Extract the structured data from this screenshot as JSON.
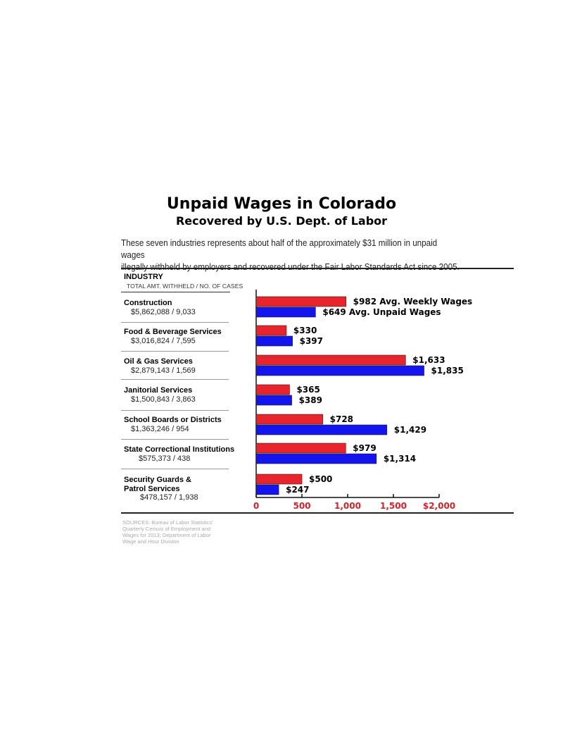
{
  "title": "Unpaid Wages in Colorado",
  "subtitle": "Recovered by U.S. Dept. of Labor",
  "intro_line1": "These seven industries represents about half of the approximately $31 million in unpaid wages",
  "intro_line2": "illegally withheld by employers and recovered under the Fair Labor Standards Act since 2005.",
  "header": {
    "industry": "INDUSTRY",
    "columns": "TOTAL AMT. WITHHELD / NO. OF CASES"
  },
  "rows": [
    {
      "name": "Construction",
      "stat": "$5,862,088 / 9,033"
    },
    {
      "name": "Food & Beverage Services",
      "stat": "$3,016,824 / 7,595"
    },
    {
      "name": "Oil & Gas Services",
      "stat": "$2,879,143 / 1,569"
    },
    {
      "name": "Janitorial Services",
      "stat": "$1,500,843 / 3,863"
    },
    {
      "name": "School Boards or Districts",
      "stat": "$1,363,246 / 954"
    },
    {
      "name": "State Correctional Institutions",
      "stat": "$575,373 / 438"
    },
    {
      "name_line1": "Security Guards &",
      "name_line2": "Patrol Services",
      "stat": "$478,157 / 1,938"
    }
  ],
  "source_lines": [
    "SOURCES: Bureau of Labor Statistics'",
    "Quarterly Census of Employment and",
    "Wages for 2013; Department of Labor",
    "Wage and Hour Division"
  ],
  "colors": {
    "weekly": "#e8242c",
    "unpaid": "#1414ee",
    "axis_labels": "#d8202a"
  },
  "chart_data": {
    "type": "bar",
    "orientation": "horizontal",
    "categories": [
      "Construction",
      "Food & Beverage Services",
      "Oil & Gas Services",
      "Janitorial Services",
      "School Boards or Districts",
      "State Correctional Institutions",
      "Security Guards & Patrol Services"
    ],
    "series": [
      {
        "name": "Avg. Weekly Wages",
        "values": [
          982,
          330,
          1633,
          365,
          728,
          979,
          500
        ]
      },
      {
        "name": "Avg. Unpaid Wages",
        "values": [
          649,
          397,
          1835,
          389,
          1429,
          1314,
          247
        ]
      }
    ],
    "weekly_labels": [
      "$982 Avg. Weekly Wages",
      "$330",
      "$1,633",
      "$365",
      "$728",
      "$979",
      "$500"
    ],
    "unpaid_labels": [
      "$649 Avg. Unpaid Wages",
      "$397",
      "$1,835",
      "$389",
      "$1,429",
      "$1,314",
      "$247"
    ],
    "xticks": [
      0,
      500,
      1000,
      1500,
      2000
    ],
    "xtick_labels": [
      "0",
      "500",
      "1,000",
      "1,500",
      "$2,000"
    ],
    "xlim": [
      0,
      2000
    ]
  }
}
